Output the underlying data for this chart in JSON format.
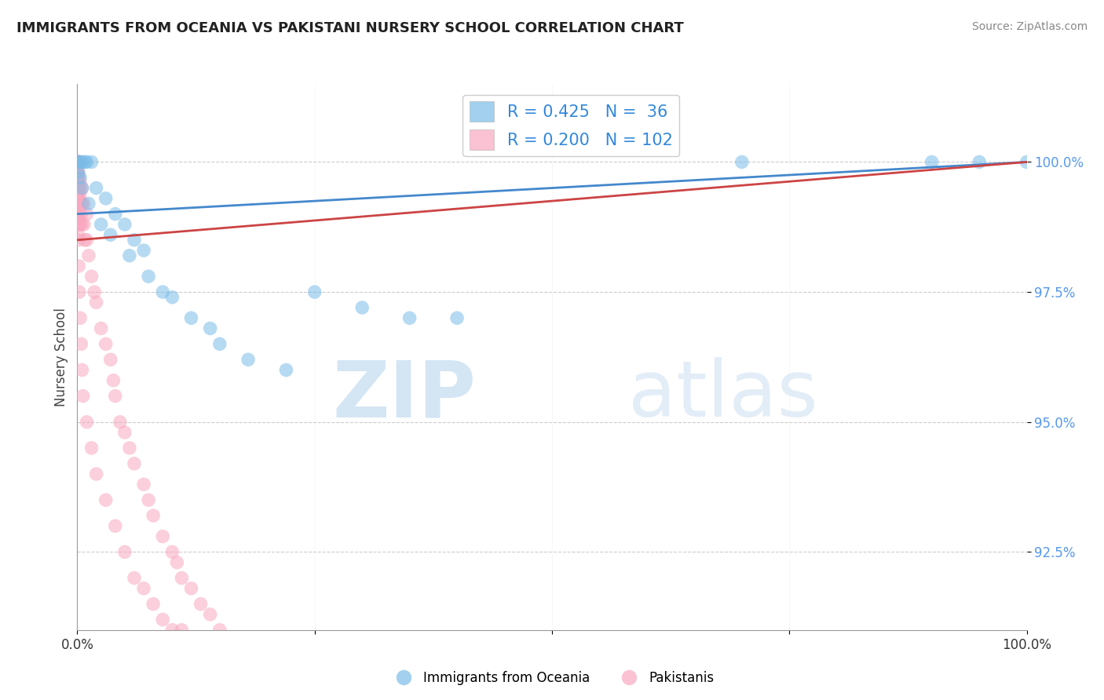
{
  "title": "IMMIGRANTS FROM OCEANIA VS PAKISTANI NURSERY SCHOOL CORRELATION CHART",
  "source": "Source: ZipAtlas.com",
  "ylabel": "Nursery School",
  "yticks": [
    92.5,
    95.0,
    97.5,
    100.0
  ],
  "ytick_labels": [
    "92.5%",
    "95.0%",
    "97.5%",
    "100.0%"
  ],
  "xlim": [
    0.0,
    100.0
  ],
  "ylim": [
    91.0,
    101.5
  ],
  "blue_R": 0.425,
  "blue_N": 36,
  "pink_R": 0.2,
  "pink_N": 102,
  "blue_color": "#7bbce8",
  "pink_color": "#f9a8c0",
  "blue_trend_color": "#4488cc",
  "pink_trend_color": "#cc4444",
  "watermark_zip": "ZIP",
  "watermark_atlas": "atlas",
  "legend_label_blue": "Immigrants from Oceania",
  "legend_label_pink": "Pakistanis",
  "blue_scatter_x": [
    0.1,
    0.1,
    0.2,
    0.3,
    0.5,
    0.8,
    1.0,
    1.5,
    2.0,
    3.0,
    4.0,
    5.0,
    6.0,
    7.0,
    0.3,
    0.5,
    1.2,
    2.5,
    3.5,
    5.5,
    7.5,
    9.0,
    10.0,
    12.0,
    14.0,
    15.0,
    18.0,
    22.0,
    25.0,
    30.0,
    35.0,
    40.0,
    70.0,
    90.0,
    95.0,
    100.0
  ],
  "blue_scatter_y": [
    100.0,
    99.8,
    100.0,
    100.0,
    100.0,
    100.0,
    100.0,
    100.0,
    99.5,
    99.3,
    99.0,
    98.8,
    98.5,
    98.3,
    99.7,
    99.5,
    99.2,
    98.8,
    98.6,
    98.2,
    97.8,
    97.5,
    97.4,
    97.0,
    96.8,
    96.5,
    96.2,
    96.0,
    97.5,
    97.2,
    97.0,
    97.0,
    100.0,
    100.0,
    100.0,
    100.0
  ],
  "pink_scatter_x": [
    0.02,
    0.02,
    0.02,
    0.02,
    0.02,
    0.02,
    0.02,
    0.02,
    0.02,
    0.02,
    0.02,
    0.02,
    0.02,
    0.02,
    0.02,
    0.02,
    0.02,
    0.02,
    0.02,
    0.02,
    0.05,
    0.05,
    0.05,
    0.05,
    0.05,
    0.05,
    0.05,
    0.05,
    0.05,
    0.05,
    0.1,
    0.1,
    0.1,
    0.1,
    0.1,
    0.1,
    0.1,
    0.1,
    0.1,
    0.1,
    0.2,
    0.2,
    0.2,
    0.2,
    0.2,
    0.3,
    0.3,
    0.3,
    0.3,
    0.4,
    0.5,
    0.5,
    0.5,
    0.7,
    0.7,
    0.8,
    1.0,
    1.0,
    1.2,
    1.5,
    1.8,
    2.0,
    2.5,
    3.0,
    3.5,
    3.8,
    4.0,
    4.5,
    5.0,
    5.5,
    6.0,
    7.0,
    7.5,
    8.0,
    9.0,
    10.0,
    10.5,
    11.0,
    12.0,
    13.0,
    14.0,
    15.0,
    0.1,
    0.1,
    0.15,
    0.2,
    0.3,
    0.4,
    0.5,
    0.6,
    1.0,
    1.5,
    2.0,
    3.0,
    4.0,
    5.0,
    6.0,
    7.0,
    8.0,
    9.0,
    10.0,
    11.0
  ],
  "pink_scatter_y": [
    100.0,
    100.0,
    100.0,
    100.0,
    100.0,
    100.0,
    100.0,
    100.0,
    100.0,
    100.0,
    99.9,
    99.8,
    99.7,
    99.6,
    99.5,
    99.4,
    99.3,
    99.2,
    99.1,
    99.0,
    100.0,
    100.0,
    99.8,
    99.7,
    99.6,
    99.5,
    99.4,
    99.3,
    99.2,
    99.0,
    100.0,
    99.8,
    99.6,
    99.5,
    99.4,
    99.3,
    99.1,
    99.0,
    98.8,
    98.6,
    99.7,
    99.5,
    99.3,
    99.1,
    98.9,
    99.6,
    99.4,
    99.2,
    98.8,
    99.0,
    99.5,
    99.2,
    98.8,
    99.2,
    98.8,
    98.5,
    99.0,
    98.5,
    98.2,
    97.8,
    97.5,
    97.3,
    96.8,
    96.5,
    96.2,
    95.8,
    95.5,
    95.0,
    94.8,
    94.5,
    94.2,
    93.8,
    93.5,
    93.2,
    92.8,
    92.5,
    92.3,
    92.0,
    91.8,
    91.5,
    91.3,
    91.0,
    98.8,
    98.5,
    98.0,
    97.5,
    97.0,
    96.5,
    96.0,
    95.5,
    95.0,
    94.5,
    94.0,
    93.5,
    93.0,
    92.5,
    92.0,
    91.8,
    91.5,
    91.2,
    91.0,
    91.0
  ],
  "blue_trend_x0": 0.0,
  "blue_trend_y0": 99.0,
  "blue_trend_x1": 100.0,
  "blue_trend_y1": 100.0,
  "pink_trend_x0": 0.0,
  "pink_trend_y0": 98.5,
  "pink_trend_x1": 100.0,
  "pink_trend_y1": 100.0
}
